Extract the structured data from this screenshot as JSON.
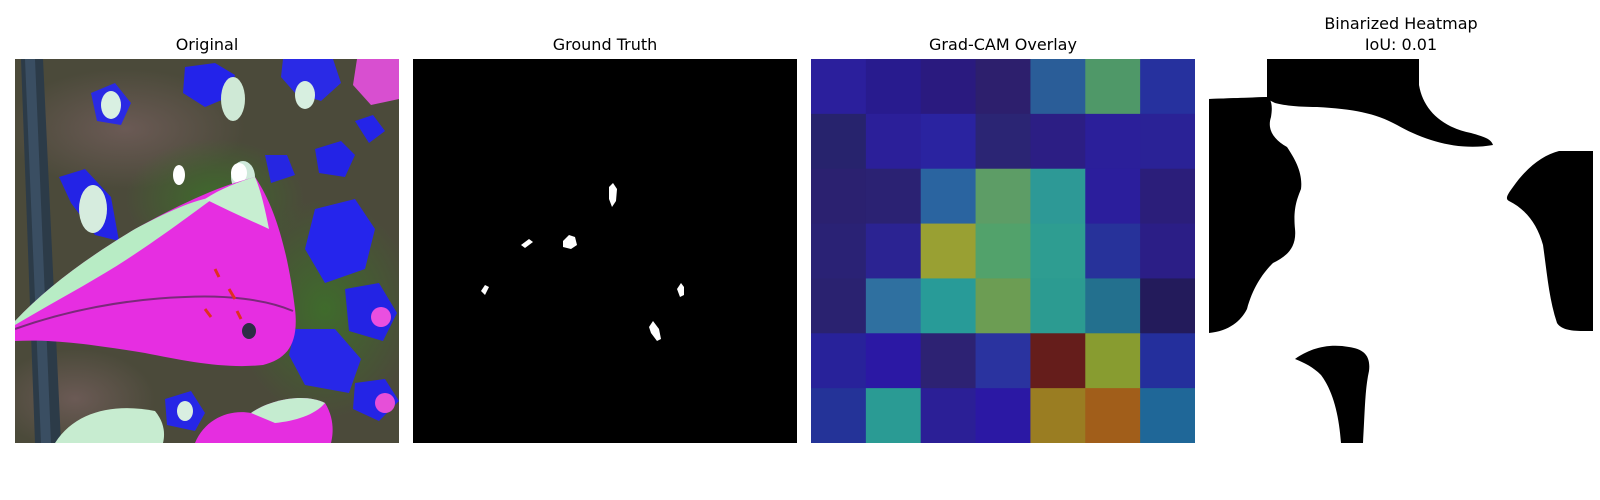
{
  "figure": {
    "panels": [
      {
        "title": "Original"
      },
      {
        "title": "Ground Truth"
      },
      {
        "title": "Grad-CAM Overlay"
      },
      {
        "title_line1": "Binarized Heatmap",
        "title_line2": "IoU: 0.01"
      }
    ]
  },
  "gradcam_grid": {
    "rows": 7,
    "cols": 7,
    "colors": [
      [
        "#2b1f9c",
        "#281b8e",
        "#2a1a7f",
        "#2d1f6d",
        "#2a5d98",
        "#4f9868",
        "#26319e"
      ],
      [
        "#27236d",
        "#2b1f99",
        "#2a23a0",
        "#2b2574",
        "#2c1e84",
        "#2b1f9a",
        "#2a2296"
      ],
      [
        "#2b2170",
        "#2b2273",
        "#2a64a0",
        "#5d9d66",
        "#2d9996",
        "#2b1e9c",
        "#2b1e7a"
      ],
      [
        "#2a2275",
        "#2b2392",
        "#99a033",
        "#52a26b",
        "#2e9d91",
        "#27329a",
        "#2b1e86"
      ],
      [
        "#2a2270",
        "#2f70a0",
        "#289b98",
        "#6c9d53",
        "#2c9b91",
        "#23708e",
        "#231b5b"
      ],
      [
        "#28229a",
        "#2b18a4",
        "#2d2273",
        "#2a339f",
        "#651d1b",
        "#889c30",
        "#242f9c"
      ],
      [
        "#243398",
        "#2a9b94",
        "#2b1f96",
        "#2b18a4",
        "#9a7d22",
        "#a15e1a",
        "#1f6798"
      ]
    ]
  }
}
